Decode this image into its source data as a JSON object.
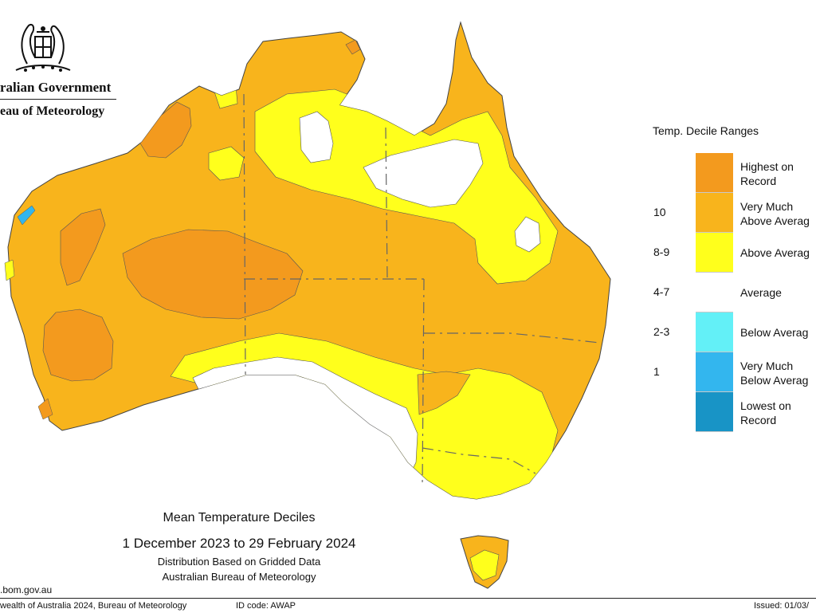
{
  "header": {
    "agency_line1": "ralian Government",
    "agency_line2": "eau of Meteorology",
    "crest_icon": "coat-of-arms-icon"
  },
  "map": {
    "title": "Mean Temperature Deciles",
    "period": "1 December 2023 to 29 February 2024",
    "method": "Distribution Based on Gridded Data",
    "source": "Australian Bureau of Meteorology",
    "predominant_category": "Very Much Above Average",
    "notable_regions": [
      {
        "area": "central Australia",
        "category": "Highest on Record"
      },
      {
        "area": "Kimberley and Pilbara",
        "category": "Highest on Record"
      },
      {
        "area": "southwest Western Australia",
        "category": "Highest on Record"
      },
      {
        "area": "northern Northern Territory",
        "category": "Average"
      },
      {
        "area": "northern Queensland",
        "category": "Average"
      },
      {
        "area": "South Australian coast",
        "category": "Average"
      },
      {
        "area": "Victoria and southern New South Wales",
        "category": "Above Average"
      }
    ]
  },
  "legend": {
    "title": "Temp. Decile Ranges",
    "items": [
      {
        "range": "",
        "label": "Highest on\nRecord",
        "color": "#f39a1e"
      },
      {
        "range": "10",
        "label": "Very Much\nAbove Averag",
        "color": "#f8b41c"
      },
      {
        "range": "8-9",
        "label": "Above Averag",
        "color": "#ffff1c"
      },
      {
        "range": "4-7",
        "label": "Average",
        "color": "#ffffff"
      },
      {
        "range": "2-3",
        "label": "Below Averag",
        "color": "#63f0f7"
      },
      {
        "range": "1",
        "label": "Very Much\nBelow Averag",
        "color": "#33b6ee"
      },
      {
        "range": "",
        "label": "Lowest on\nRecord",
        "color": "#1894c6"
      }
    ]
  },
  "footer": {
    "website": ".bom.gov.au",
    "copyright": "wealth of Australia 2024, Bureau of Meteorology",
    "id_code": "ID code: AWAP",
    "issued": "Issued: 01/03/"
  }
}
